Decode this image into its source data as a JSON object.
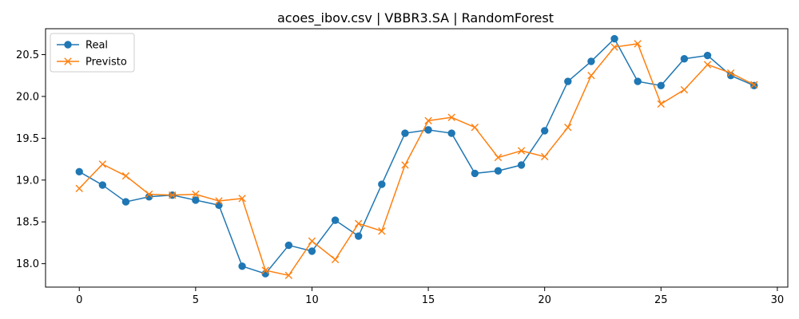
{
  "chart_data": {
    "type": "line",
    "title": "acoes_ibov.csv | VBBR3.SA | RandomForest",
    "xlabel": "",
    "ylabel": "",
    "x": [
      0,
      1,
      2,
      3,
      4,
      5,
      6,
      7,
      8,
      9,
      10,
      11,
      12,
      13,
      14,
      15,
      16,
      17,
      18,
      19,
      20,
      21,
      22,
      23,
      24,
      25,
      26,
      27,
      28,
      29
    ],
    "xlim": [
      -1.45,
      30.45
    ],
    "ylim": [
      17.72,
      20.81
    ],
    "xticks": [
      0,
      5,
      10,
      15,
      20,
      25,
      30
    ],
    "xtick_labels": [
      "0",
      "5",
      "10",
      "15",
      "20",
      "25",
      "30"
    ],
    "yticks": [
      18.0,
      18.5,
      19.0,
      19.5,
      20.0,
      20.5
    ],
    "ytick_labels": [
      "18.0",
      "18.5",
      "19.0",
      "19.5",
      "20.0",
      "20.5"
    ],
    "grid": false,
    "legend_position": "top-left",
    "series": [
      {
        "name": "Real",
        "color": "#1f77b4",
        "marker": "circle",
        "values": [
          19.1,
          18.94,
          18.74,
          18.8,
          18.82,
          18.76,
          18.7,
          17.97,
          17.88,
          18.22,
          18.15,
          18.52,
          18.33,
          18.95,
          19.56,
          19.6,
          19.56,
          19.08,
          19.11,
          19.18,
          19.59,
          20.18,
          20.42,
          20.69,
          20.18,
          20.13,
          20.45,
          20.49,
          20.25,
          20.13
        ]
      },
      {
        "name": "Previsto",
        "color": "#ff7f0e",
        "marker": "x",
        "values": [
          18.9,
          19.19,
          19.05,
          18.83,
          18.82,
          18.83,
          18.75,
          18.78,
          17.92,
          17.86,
          18.27,
          18.05,
          18.48,
          18.39,
          19.18,
          19.71,
          19.75,
          19.63,
          19.27,
          19.35,
          19.28,
          19.63,
          20.25,
          20.59,
          20.63,
          19.91,
          20.08,
          20.38,
          20.28,
          20.14
        ]
      }
    ]
  }
}
